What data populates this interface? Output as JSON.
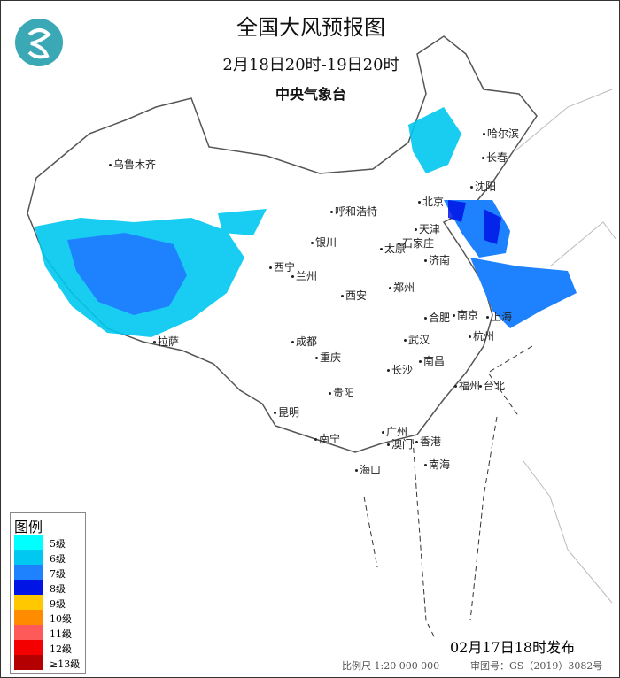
{
  "header": {
    "title": "全国大风预报图",
    "period": "2月18日20时-19日20时",
    "agency": "中央气象台"
  },
  "legend": {
    "title": "图例",
    "items": [
      {
        "label": "5级",
        "color": "#00ffff"
      },
      {
        "label": "6级",
        "color": "#00c8f0"
      },
      {
        "label": "7级",
        "color": "#1e82ff"
      },
      {
        "label": "8级",
        "color": "#0014e6"
      },
      {
        "label": "9级",
        "color": "#ffc800"
      },
      {
        "label": "10级",
        "color": "#ff8c00"
      },
      {
        "label": "11级",
        "color": "#ff5a5a"
      },
      {
        "label": "12级",
        "color": "#f50000"
      },
      {
        "label": "≥13级",
        "color": "#b40000"
      }
    ]
  },
  "cities": [
    "乌鲁木齐",
    "哈尔滨",
    "长春",
    "沈阳",
    "北京",
    "天津",
    "呼和浩特",
    "太原",
    "石家庄",
    "济南",
    "银川",
    "西宁",
    "兰州",
    "郑州",
    "西安",
    "合肥",
    "南京",
    "上海",
    "杭州",
    "成都",
    "武汉",
    "重庆",
    "拉萨",
    "长沙",
    "南昌",
    "福州",
    "台北",
    "贵阳",
    "昆明",
    "南宁",
    "广州",
    "香港",
    "澳门",
    "海口",
    "南海"
  ],
  "footer": {
    "issued": "02月17日18时发布",
    "scale": "比例尺 1:20 000 000",
    "review": "审图号：GS（2019）3082号"
  }
}
